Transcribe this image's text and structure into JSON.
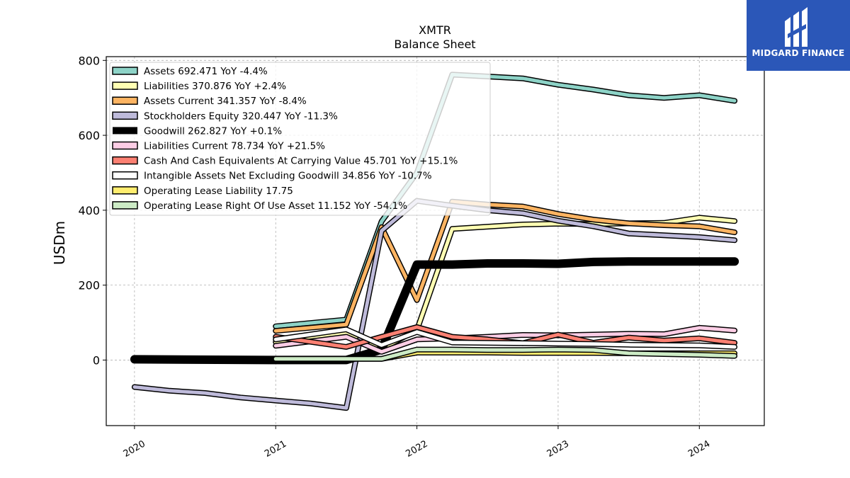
{
  "brand": {
    "name": "MIDGARD FINANCE",
    "logo_icon": "midgard-logo-icon",
    "color": "#2b57b8"
  },
  "chart_data": {
    "type": "line",
    "title": "XMTR",
    "subtitle": "Balance  Sheet",
    "ylabel": "USDm",
    "xlabel": "",
    "ylim": [
      -175,
      810
    ],
    "xlim": [
      2019.8,
      2024.46
    ],
    "yticks": [
      0,
      200,
      400,
      600,
      800
    ],
    "xticks": [
      "2020",
      "2021",
      "2022",
      "2023",
      "2024"
    ],
    "grid": true,
    "legend_placement": "top-left",
    "series": [
      {
        "name": "Assets",
        "label": "Assets  692.471 YoY -4.4%",
        "color": "#8dd3c7",
        "width": 5,
        "x": [
          2021.0,
          2021.5,
          2021.75,
          2022.0,
          2022.25,
          2022.5,
          2022.75,
          2023.0,
          2023.25,
          2023.5,
          2023.75,
          2024.0,
          2024.25
        ],
        "y": [
          90,
          108,
          370,
          500,
          762,
          757,
          752,
          735,
          722,
          707,
          700,
          707,
          692
        ]
      },
      {
        "name": "Liabilities",
        "label": "Liabilities  370.876 YoY +2.4%",
        "color": "#ffffb3",
        "width": 5,
        "x": [
          2021.0,
          2021.5,
          2021.75,
          2022.0,
          2022.25,
          2022.5,
          2022.75,
          2023.0,
          2023.25,
          2023.5,
          2023.75,
          2024.0,
          2024.25
        ],
        "y": [
          48,
          70,
          30,
          80,
          350,
          356,
          362,
          364,
          363,
          365,
          366,
          380,
          371
        ]
      },
      {
        "name": "Assets Current",
        "label": "Assets Current  341.357 YoY -8.4%",
        "color": "#fdb462",
        "width": 5,
        "x": [
          2021.0,
          2021.5,
          2021.75,
          2022.0,
          2022.25,
          2022.5,
          2022.75,
          2023.0,
          2023.25,
          2023.5,
          2023.75,
          2024.0,
          2024.25
        ],
        "y": [
          78,
          95,
          355,
          160,
          423,
          415,
          410,
          390,
          375,
          365,
          360,
          357,
          341
        ]
      },
      {
        "name": "Stockholders Equity",
        "label": "Stockholders Equity  320.447 YoY -11.3%",
        "color": "#bebada",
        "width": 5,
        "x": [
          2020.0,
          2020.25,
          2020.5,
          2020.75,
          2021.0,
          2021.25,
          2021.5,
          2021.75,
          2022.0,
          2022.25,
          2022.5,
          2022.75,
          2023.0,
          2023.25,
          2023.5,
          2023.75,
          2024.0,
          2024.25
        ],
        "y": [
          -72,
          -82,
          -88,
          -100,
          -108,
          -116,
          -128,
          345,
          425,
          412,
          400,
          392,
          372,
          357,
          338,
          333,
          328,
          320
        ]
      },
      {
        "name": "Goodwill",
        "label": "Goodwill  262.827 YoY +0.1%",
        "color": "#000000",
        "width": 9,
        "x": [
          2020.0,
          2021.0,
          2021.5,
          2021.75,
          2022.0,
          2022.25,
          2022.5,
          2022.75,
          2023.0,
          2023.25,
          2023.5,
          2023.75,
          2024.0,
          2024.25
        ],
        "y": [
          2,
          0,
          0,
          28,
          255,
          255,
          258,
          258,
          257,
          262,
          263,
          263,
          263,
          263
        ]
      },
      {
        "name": "Liabilities Current",
        "label": "Liabilities Current  78.734 YoY +21.5%",
        "color": "#fccde5",
        "width": 5,
        "x": [
          2021.0,
          2021.5,
          2021.75,
          2022.0,
          2022.25,
          2022.5,
          2022.75,
          2023.0,
          2023.25,
          2023.5,
          2023.75,
          2024.0,
          2024.25
        ],
        "y": [
          38,
          62,
          22,
          55,
          58,
          62,
          67,
          66,
          68,
          70,
          69,
          86,
          79
        ]
      },
      {
        "name": "Cash And Cash Equivalents At Carrying Value",
        "label": "Cash And Cash Equivalents At Carrying Value  45.701 YoY +15.1%",
        "color": "#fb8072",
        "width": 5,
        "x": [
          2021.0,
          2021.5,
          2021.75,
          2022.0,
          2022.25,
          2022.5,
          2022.75,
          2023.0,
          2023.25,
          2023.5,
          2023.75,
          2024.0,
          2024.25
        ],
        "y": [
          62,
          35,
          62,
          88,
          62,
          55,
          45,
          68,
          46,
          60,
          52,
          58,
          46
        ]
      },
      {
        "name": "Intangible Assets Net Excluding Goodwill",
        "label": "Intangible Assets Net Excluding Goodwill  34.856 YoY -10.7%",
        "color": "#ffffff",
        "width": 5,
        "x": [
          2021.0,
          2021.5,
          2021.75,
          2022.0,
          2022.25,
          2022.5,
          2022.75,
          2023.0,
          2023.25,
          2023.5,
          2023.75,
          2024.0,
          2024.25
        ],
        "y": [
          55,
          82,
          40,
          75,
          47,
          46,
          45,
          44,
          43,
          41,
          40,
          39,
          35
        ]
      },
      {
        "name": "Operating Lease Liability",
        "label": "Operating Lease Liability  17.75",
        "color": "#ffed6f",
        "width": 5,
        "x": [
          2021.0,
          2021.75,
          2022.0,
          2022.25,
          2022.5,
          2022.75,
          2023.0,
          2023.25,
          2023.5,
          2023.75,
          2024.0,
          2024.25
        ],
        "y": [
          3,
          3,
          20,
          20,
          20,
          19,
          19,
          19,
          18,
          18,
          18,
          18
        ]
      },
      {
        "name": "Operating Lease Right Of Use Asset",
        "label": "Operating Lease Right Of Use Asset  11.152 YoY -54.1%",
        "color": "#ccebc5",
        "width": 5,
        "x": [
          2021.0,
          2021.75,
          2022.0,
          2022.25,
          2022.5,
          2022.75,
          2023.0,
          2023.25,
          2023.5,
          2023.75,
          2024.0,
          2024.25
        ],
        "y": [
          3,
          3,
          28,
          28,
          27,
          27,
          28,
          27,
          18,
          16,
          14,
          11
        ]
      }
    ]
  }
}
